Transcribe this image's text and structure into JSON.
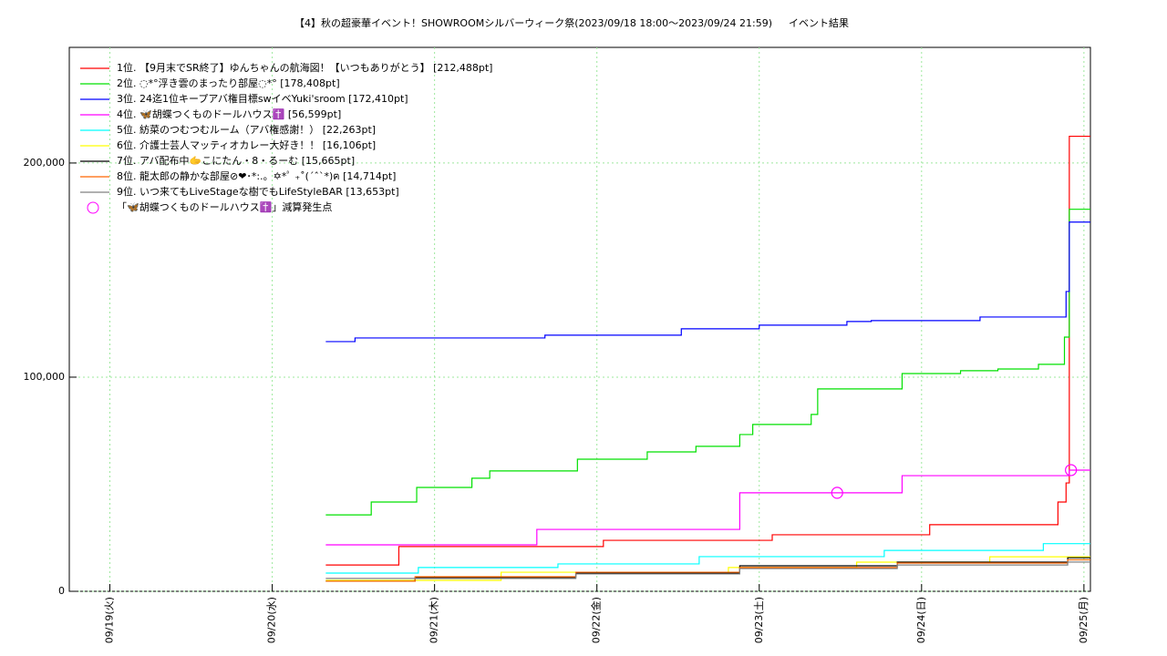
{
  "chart_data": {
    "type": "line",
    "step": true,
    "title": "【4】秋の超豪華イベント！SHOWROOMシルバーウィーク祭(2023/09/18 18:00〜2023/09/24 21:59)",
    "subtitle": "イベント結果",
    "xlim": [
      18.75,
      25.04
    ],
    "xticks": [
      {
        "value": 19,
        "label": "09/19(火)"
      },
      {
        "value": 20,
        "label": "09/20(水)"
      },
      {
        "value": 21,
        "label": "09/21(木)"
      },
      {
        "value": 22,
        "label": "09/22(金)"
      },
      {
        "value": 23,
        "label": "09/23(土)"
      },
      {
        "value": 24,
        "label": "09/24(日)"
      },
      {
        "value": 25,
        "label": "09/25(月)"
      }
    ],
    "ylim": [
      0,
      254000
    ],
    "yticks": [
      0,
      {
        "value": 100000,
        "label": "100,000"
      },
      {
        "value": 200000,
        "label": "200,000"
      }
    ],
    "grid": true,
    "legend": "upper left",
    "series": [
      {
        "name": "1位. 【9月末でSR終了】ゆんちゃんの航海図！【いつもありがとう】 [212,488pt]",
        "color": "#ff0000",
        "x": [
          20.33,
          20.78,
          22.04,
          23.08,
          24.05,
          24.84,
          24.89,
          24.91,
          25.04
        ],
        "values": [
          12300,
          20900,
          23800,
          26400,
          31100,
          41700,
          50600,
          212488,
          212488
        ]
      },
      {
        "name": "2位. ◌*°浮き雲のまったり部屋◌*° [178,408pt]",
        "color": "#00e000",
        "x": [
          20.33,
          20.61,
          20.89,
          21.23,
          21.34,
          21.88,
          22.31,
          22.61,
          22.88,
          22.96,
          23.32,
          23.36,
          23.88,
          24.24,
          24.47,
          24.72,
          24.88,
          24.91,
          25.04
        ],
        "values": [
          35700,
          41700,
          48500,
          52800,
          56200,
          61700,
          65100,
          67700,
          73200,
          77900,
          82600,
          94500,
          101700,
          103000,
          103800,
          106000,
          118700,
          178408,
          178408
        ]
      },
      {
        "name": "3位. 24迄1位キープアバ権目標swイベYuki'sroom [172,410pt]",
        "color": "#0000ff",
        "x": [
          20.33,
          20.51,
          21.68,
          22.52,
          23.0,
          23.54,
          23.69,
          24.36,
          24.89,
          24.91,
          25.04
        ],
        "values": [
          116600,
          118300,
          119600,
          122600,
          124300,
          126000,
          126400,
          128100,
          140000,
          172410,
          172410
        ]
      },
      {
        "name": "4位. 🦋胡蝶つくものドールハウス✝️ [56,599pt]",
        "color": "#ff00ff",
        "x": [
          20.33,
          21.63,
          22.88,
          23.88,
          24.91,
          25.04
        ],
        "values": [
          21700,
          28900,
          46000,
          54000,
          56599,
          56599
        ]
      },
      {
        "name": "5位. 紡菜のつむつむルーム（アバ権感謝！） [22,263pt]",
        "color": "#00ffff",
        "x": [
          20.33,
          20.9,
          21.76,
          22.63,
          23.77,
          24.75,
          25.04
        ],
        "values": [
          8500,
          11100,
          12800,
          16200,
          19100,
          22263,
          22263
        ]
      },
      {
        "name": "6位. 介護士芸人マッティオカレー大好き！！ [16,106pt]",
        "color": "#ffff00",
        "x": [
          20.33,
          21.41,
          22.81,
          23.6,
          24.42,
          25.04
        ],
        "values": [
          5100,
          8900,
          11100,
          13600,
          16106,
          16106
        ]
      },
      {
        "name": "7位. アバ配布中🫱こにたん・8・るーむ [15,665pt]",
        "color": "#000000",
        "x": [
          20.33,
          20.88,
          21.87,
          22.88,
          23.85,
          24.9,
          25.04
        ],
        "values": [
          4700,
          6400,
          8500,
          11900,
          13600,
          15665,
          15665
        ]
      },
      {
        "name": "8位. 龍太郎の静かな部屋⊘❤︎･*:.。✡*ﾟ ₊˚(ˊˆˋ*)ฅ [14,714pt]",
        "color": "#ff6600",
        "x": [
          20.33,
          20.88,
          21.87,
          22.88,
          23.85,
          24.9,
          25.04
        ],
        "values": [
          4700,
          6800,
          8900,
          11100,
          13200,
          14714,
          14714
        ]
      },
      {
        "name": "9位. いつ来てもLiveStageな樹でもLifeStyleBAR [13,653pt]",
        "color": "#808080",
        "x": [
          20.33,
          21.87,
          22.88,
          23.85,
          24.9,
          25.04
        ],
        "values": [
          6000,
          8100,
          10600,
          12300,
          13653,
          13653
        ]
      },
      {
        "name": "「🦋胡蝶つくものドールハウス✝️」減算発生点",
        "color": "#ff00ff",
        "marker": "circle",
        "x": [
          23.48,
          24.92
        ],
        "values": [
          46000,
          56599
        ]
      }
    ]
  }
}
